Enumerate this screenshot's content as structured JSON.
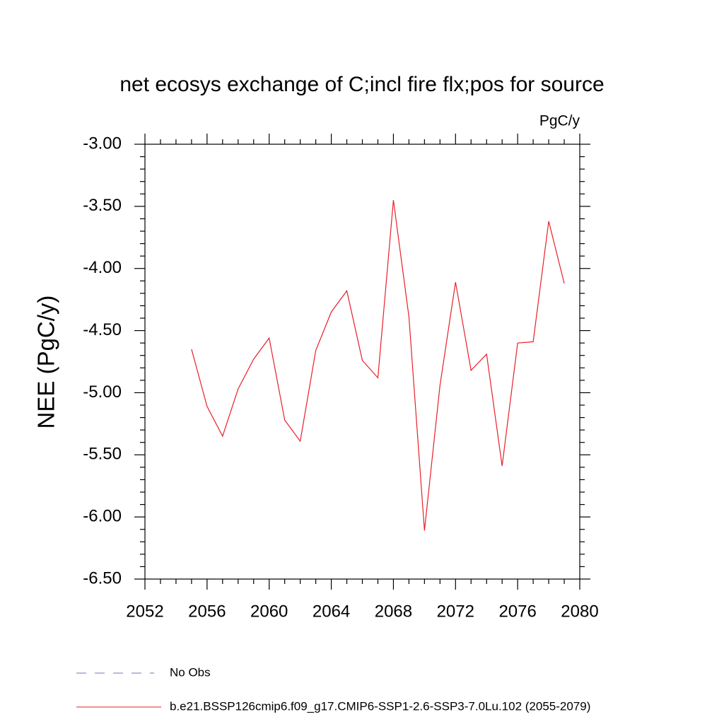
{
  "chart_data": {
    "type": "line",
    "title": "net ecosys exchange of C;incl fire flx;pos for source",
    "units": "PgC/y",
    "y_label": "NEE  (PgC/y)",
    "x": [
      2055,
      2056,
      2057,
      2058,
      2059,
      2060,
      2061,
      2062,
      2063,
      2064,
      2065,
      2066,
      2067,
      2068,
      2069,
      2070,
      2071,
      2072,
      2073,
      2074,
      2075,
      2076,
      2077,
      2078,
      2079
    ],
    "series": [
      {
        "name": "No Obs",
        "color": "#7b6fb8",
        "dashed": true,
        "values": [
          null,
          null,
          null,
          null,
          null,
          null,
          null,
          null,
          null,
          null,
          null,
          null,
          null,
          null,
          null,
          null,
          null,
          null,
          null,
          null,
          null,
          null,
          null,
          null,
          null
        ]
      },
      {
        "name": "b.e21.BSSP126cmip6.f09_g17.CMIP6-SSP1-2.6-SSP3-7.0Lu.102 (2055-2079)",
        "color": "#e8202a",
        "dashed": false,
        "values": [
          -4.65,
          -5.11,
          -5.35,
          -4.97,
          -4.73,
          -4.56,
          -5.22,
          -5.39,
          -4.66,
          -4.35,
          -4.18,
          -4.74,
          -4.88,
          -3.45,
          -4.39,
          -6.11,
          -4.94,
          -4.11,
          -4.82,
          -4.69,
          -5.59,
          -4.6,
          -4.59,
          -3.62,
          -4.12
        ]
      }
    ],
    "xlim": [
      2052,
      2080
    ],
    "xticks": [
      2052,
      2056,
      2060,
      2064,
      2068,
      2072,
      2076,
      2080
    ],
    "xminorticks": [
      2053,
      2054,
      2055,
      2057,
      2058,
      2059,
      2061,
      2062,
      2063,
      2065,
      2066,
      2067,
      2069,
      2070,
      2071,
      2073,
      2074,
      2075,
      2077,
      2078,
      2079
    ],
    "ylim": [
      -6.5,
      -3.0
    ],
    "yticks": [
      {
        "value": -3.0,
        "label": "-3.00"
      },
      {
        "value": -3.5,
        "label": "-3.50"
      },
      {
        "value": -4.0,
        "label": "-4.00"
      },
      {
        "value": -4.5,
        "label": "-4.50"
      },
      {
        "value": -5.0,
        "label": "-5.00"
      },
      {
        "value": -5.5,
        "label": "-5.50"
      },
      {
        "value": -6.0,
        "label": "-6.00"
      },
      {
        "value": -6.5,
        "label": "-6.50"
      }
    ],
    "yminorticks": [
      -3.1,
      -3.2,
      -3.3,
      -3.4,
      -3.6,
      -3.7,
      -3.8,
      -3.9,
      -4.1,
      -4.2,
      -4.3,
      -4.4,
      -4.6,
      -4.7,
      -4.8,
      -4.9,
      -5.1,
      -5.2,
      -5.3,
      -5.4,
      -5.6,
      -5.7,
      -5.8,
      -5.9,
      -6.1,
      -6.2,
      -6.3,
      -6.4
    ],
    "grid": false
  }
}
